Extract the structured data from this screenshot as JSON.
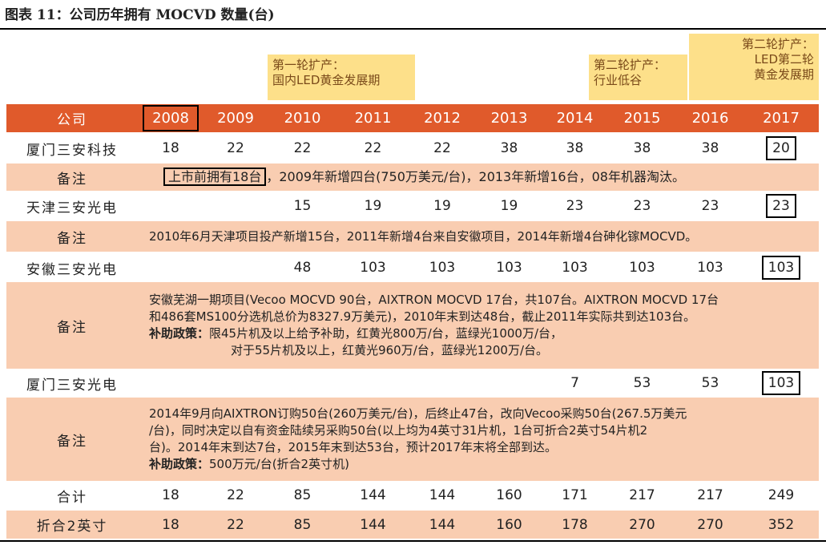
{
  "title": "图表 11：公司历年拥有 MOCVD 数量(台)",
  "annotations": [
    {
      "lines": [
        "第一轮扩产：",
        "国内LED黄金发展期"
      ]
    },
    {
      "lines": [
        "第二轮扩产：",
        "行业低谷"
      ]
    },
    {
      "lines": [
        "第二轮扩产：",
        "LED第二轮",
        "黄金发展期"
      ]
    }
  ],
  "table": {
    "header": {
      "label": "公司",
      "years": [
        2008,
        2009,
        2010,
        2011,
        2012,
        2013,
        2014,
        2015,
        2016,
        2017
      ]
    },
    "rows": [
      {
        "label": "厦门三安科技",
        "values": [
          18,
          22,
          22,
          22,
          22,
          38,
          38,
          38,
          38,
          20
        ]
      },
      {
        "label": "备注",
        "highlight": "上市前拥有18台",
        "lines": [
          "，2009年新增四台(750万美元/台)，2013年新增16台，08年机器淘汰。"
        ]
      },
      {
        "label": "天津三安光电",
        "values": [
          null,
          null,
          15,
          19,
          19,
          19,
          23,
          23,
          23,
          23
        ]
      },
      {
        "label": "备注",
        "lines": [
          "2010年6月天津项目投产新增15台，2011年新增4台来自安徽项目，2014年新增4台砷化镓MOCVD。"
        ]
      },
      {
        "label": "安徽三安光电",
        "values": [
          null,
          null,
          48,
          103,
          103,
          103,
          103,
          103,
          103,
          103
        ]
      },
      {
        "label": "备注",
        "lines": [
          "安徽芜湖一期项目(Vecoo MOCVD 90台，AIXTRON MOCVD 17台，共107台。AIXTRON MOCVD 17台",
          "和486套MS100分选机总价为8327.9万美元)，2010年末到达48台，截止2011年实际共到达103台。",
          {
            "bold": "补助政策：",
            "text": "限45片机及以上给予补助，红黄光800万/台，蓝绿光1000万/台，"
          },
          "对于55片机及以上，红黄光960万/台，蓝绿光1200万/台。"
        ]
      },
      {
        "label": "厦门三安光电",
        "values": [
          null,
          null,
          null,
          null,
          null,
          null,
          7,
          53,
          53,
          103
        ]
      },
      {
        "label": "备注",
        "lines": [
          "2014年9月向AIXTRON订购50台(260万美元/台)，后终止47台，改向Vecoo采购50台(267.5万美元",
          "/台)，同时决定以自有资金陆续另采购50台(以上均为4英寸31片机，1台可折合2英寸54片机2",
          "台)。2014年末到达7台，2015年末到达53台，预计2017年末将全部到达。",
          {
            "bold": "补助政策：",
            "text": "500万元/台(折合2英寸机)"
          }
        ]
      },
      {
        "label": "合计",
        "values": [
          18,
          22,
          85,
          144,
          144,
          160,
          171,
          217,
          217,
          249
        ]
      },
      {
        "label": "折合2英寸",
        "values": [
          18,
          22,
          85,
          144,
          144,
          160,
          178,
          270,
          270,
          352
        ]
      }
    ]
  }
}
